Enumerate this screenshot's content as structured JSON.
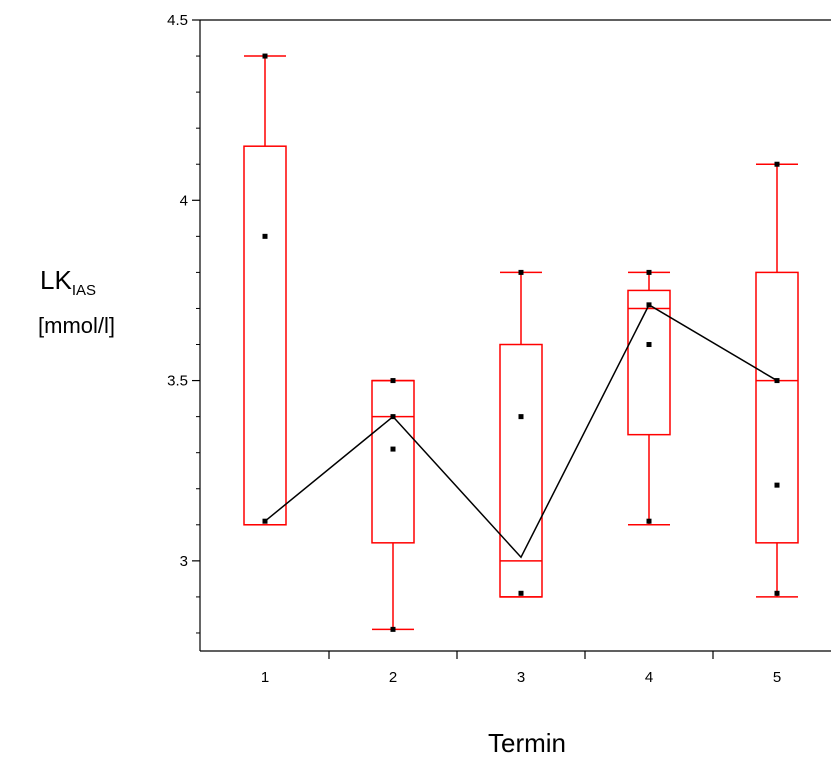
{
  "chart_data": {
    "type": "box",
    "xlabel": "Termin",
    "ylabel_main": "LK",
    "ylabel_sub": "IAS",
    "ylabel_unit": "[mmol/l]",
    "ylim": [
      2.75,
      4.5
    ],
    "yticks": [
      3,
      3.5,
      4,
      4.5
    ],
    "ytick_labels": [
      "3",
      "3.5",
      "4",
      "4.5"
    ],
    "categories": [
      "1",
      "2",
      "3",
      "4",
      "5"
    ],
    "boxes": [
      {
        "min": 3.1,
        "q1": 3.1,
        "median": 3.1,
        "q3": 4.15,
        "max": 4.4,
        "points": [
          3.11,
          3.9,
          4.4
        ]
      },
      {
        "min": 2.81,
        "q1": 3.05,
        "median": 3.4,
        "q3": 3.5,
        "max": 3.5,
        "points": [
          3.31,
          3.4,
          3.5,
          2.81
        ]
      },
      {
        "min": 2.9,
        "q1": 2.9,
        "median": 3.0,
        "q3": 3.6,
        "max": 3.8,
        "points": [
          3.4,
          3.8,
          2.91
        ]
      },
      {
        "min": 3.1,
        "q1": 3.35,
        "median": 3.7,
        "q3": 3.75,
        "max": 3.8,
        "points": [
          3.6,
          3.71,
          3.8,
          3.11
        ]
      },
      {
        "min": 2.9,
        "q1": 3.05,
        "median": 3.5,
        "q3": 3.8,
        "max": 4.1,
        "points": [
          3.21,
          3.5,
          4.1,
          2.91
        ]
      }
    ],
    "mean_line": [
      3.11,
      3.4,
      3.01,
      3.71,
      3.5
    ],
    "box_color": "#ff0000",
    "line_color": "#000000"
  }
}
